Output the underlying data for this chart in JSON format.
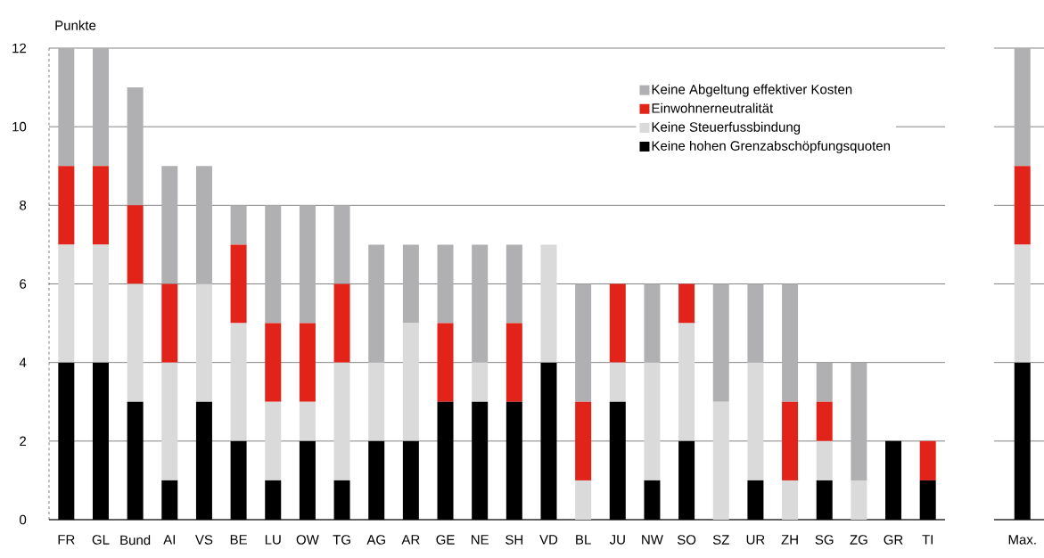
{
  "chart_data": [
    {
      "type": "bar",
      "stacked": true,
      "ylabel": "Punkte",
      "categories": [
        "FR",
        "GL",
        "Bund",
        "AI",
        "VS",
        "BE",
        "LU",
        "OW",
        "TG",
        "AG",
        "AR",
        "GE",
        "NE",
        "SH",
        "VD",
        "BL",
        "JU",
        "NW",
        "SO",
        "SZ",
        "UR",
        "ZH",
        "SG",
        "ZG",
        "GR",
        "TI"
      ],
      "series": [
        {
          "name": "Keine hohen Grenzabschöpfungsquoten",
          "color": "#000000",
          "values": [
            4,
            4,
            3,
            1,
            3,
            2,
            1,
            2,
            1,
            2,
            2,
            3,
            3,
            3,
            4,
            0,
            3,
            1,
            2,
            0,
            1,
            0,
            1,
            0,
            2,
            1
          ]
        },
        {
          "name": "Keine Steuerfussbindung",
          "color": "#dadadb",
          "values": [
            3,
            3,
            3,
            3,
            3,
            3,
            2,
            1,
            3,
            2,
            3,
            0,
            1,
            0,
            3,
            1,
            1,
            3,
            3,
            3,
            3,
            1,
            1,
            1,
            0,
            0
          ]
        },
        {
          "name": "Einwohnerneutralität",
          "color": "#e2231a",
          "values": [
            2,
            2,
            2,
            2,
            0,
            2,
            2,
            2,
            2,
            0,
            0,
            2,
            0,
            2,
            0,
            2,
            2,
            0,
            1,
            0,
            0,
            2,
            1,
            0,
            0,
            1
          ]
        },
        {
          "name": "Keine Abgeltung effektiver Kosten",
          "color": "#b0b0b2",
          "values": [
            3,
            3,
            3,
            3,
            3,
            1,
            3,
            3,
            2,
            3,
            2,
            2,
            3,
            2,
            0,
            3,
            0,
            2,
            0,
            3,
            2,
            3,
            1,
            3,
            0,
            0
          ]
        }
      ],
      "ylim": [
        0,
        12
      ],
      "yticks": [
        0,
        2,
        4,
        6,
        8,
        10,
        12
      ],
      "grid": "y",
      "legend": "top right"
    },
    {
      "type": "bar",
      "stacked": true,
      "categories": [
        "Max."
      ],
      "series": [
        {
          "color": "#000000",
          "values": [
            4
          ]
        },
        {
          "color": "#dadadb",
          "values": [
            3
          ]
        },
        {
          "color": "#e2231a",
          "values": [
            2
          ]
        },
        {
          "color": "#b0b0b2",
          "values": [
            3
          ]
        }
      ],
      "ylim": [
        0,
        12
      ],
      "yticks": [
        0,
        2,
        4,
        6,
        8,
        10,
        12
      ],
      "grid": "y",
      "tick_labels": "x"
    }
  ]
}
